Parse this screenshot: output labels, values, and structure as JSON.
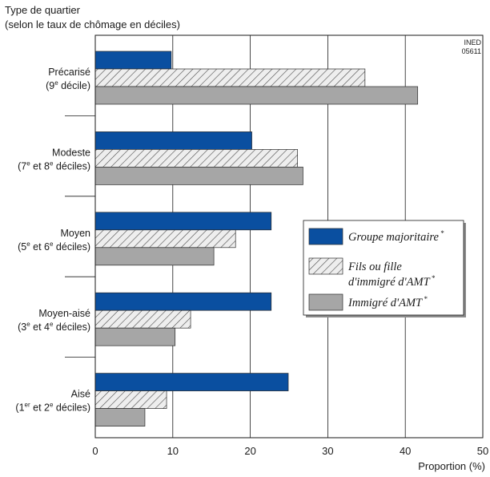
{
  "chart_data": {
    "type": "bar",
    "orientation": "horizontal",
    "title_lines": [
      "Type de quartier",
      "(selon le taux de chômage en déciles)"
    ],
    "source": [
      "INED",
      "05611"
    ],
    "xlabel": "Proportion (%)",
    "xlim": [
      0,
      50
    ],
    "xticks": [
      0,
      10,
      20,
      30,
      40,
      50
    ],
    "grid": true,
    "legend_position": "right",
    "categories": [
      {
        "line1": "Précarisé",
        "line2": {
          "a": "(9",
          "sup1": "e",
          "b": " décile)",
          "sup2": "",
          "c": ""
        }
      },
      {
        "line1": "Modeste",
        "line2": {
          "a": "(7",
          "sup1": "e",
          "b": " et 8",
          "sup2": "e",
          "c": " déciles)"
        }
      },
      {
        "line1": "Moyen",
        "line2": {
          "a": "(5",
          "sup1": "e",
          "b": " et 6",
          "sup2": "e",
          "c": " déciles)"
        }
      },
      {
        "line1": "Moyen-aisé",
        "line2": {
          "a": "(3",
          "sup1": "e",
          "b": " et 4",
          "sup2": "e",
          "c": " déciles)"
        }
      },
      {
        "line1": "Aisé",
        "line2": {
          "a": "(1",
          "sup1": "er",
          "b": " et 2",
          "sup2": "e",
          "c": " déciles)"
        }
      }
    ],
    "series": [
      {
        "name_lines": [
          "Groupe majoritaire"
        ],
        "sup": "*",
        "color": "#0a4fa0",
        "pattern": "solid",
        "values": [
          9.8,
          20.2,
          22.7,
          22.7,
          24.9
        ]
      },
      {
        "name_lines": [
          "Fils ou fille",
          "d'immigré d'AMT"
        ],
        "sup": "*",
        "color": "#e8e8e8",
        "pattern": "hatch",
        "values": [
          34.8,
          26.1,
          18.1,
          12.3,
          9.2
        ]
      },
      {
        "name_lines": [
          "Immigré d'AMT"
        ],
        "sup": "*",
        "color": "#a6a6a6",
        "pattern": "solid",
        "values": [
          41.6,
          26.8,
          15.3,
          10.3,
          6.4
        ]
      }
    ]
  }
}
